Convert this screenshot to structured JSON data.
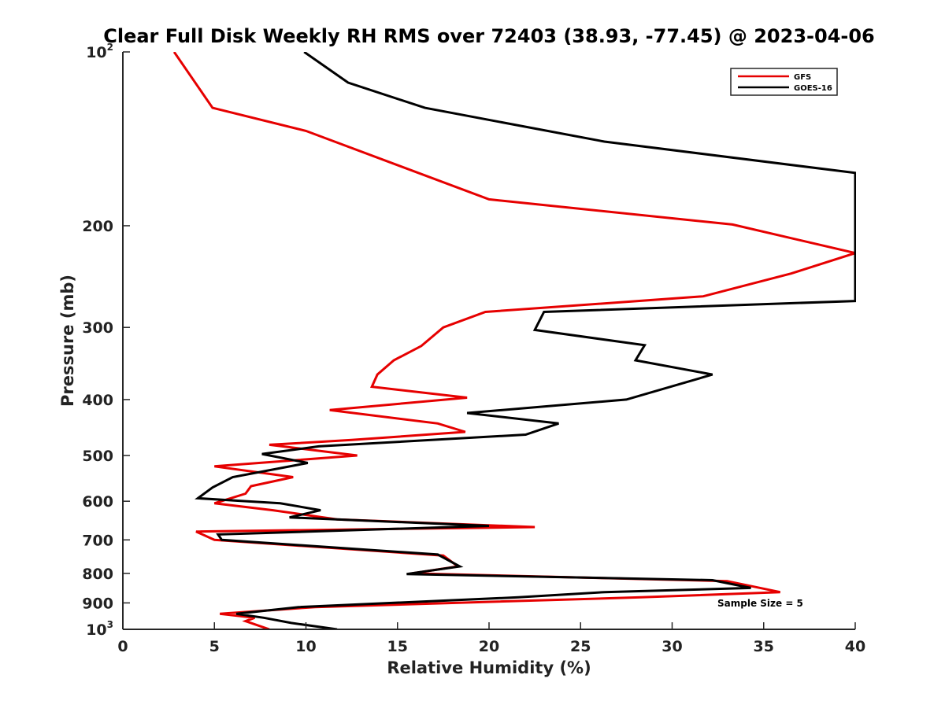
{
  "chart_data": {
    "type": "line",
    "title": "Clear Full Disk Weekly RH RMS over 72403 (38.93, -77.45) @ 2023-04-06",
    "xlabel": "Relative Humidity (%)",
    "ylabel": "Pressure (mb)",
    "xlim": [
      0,
      40
    ],
    "ylim": [
      100,
      1000
    ],
    "y_scale": "log",
    "y_reversed": true,
    "grid": false,
    "legend_placement": "top-right",
    "x_ticks": [
      "0",
      "5",
      "10",
      "15",
      "20",
      "25",
      "30",
      "35",
      "40"
    ],
    "y_ticks": [
      {
        "value": 100,
        "label": "10",
        "sup": "2"
      },
      {
        "value": 200,
        "label": "200"
      },
      {
        "value": 300,
        "label": "300"
      },
      {
        "value": 400,
        "label": "400"
      },
      {
        "value": 500,
        "label": "500"
      },
      {
        "value": 600,
        "label": "600"
      },
      {
        "value": 700,
        "label": "700"
      },
      {
        "value": 800,
        "label": "800"
      },
      {
        "value": 900,
        "label": "900"
      },
      {
        "value": 1000,
        "label": "10",
        "sup": "3"
      }
    ],
    "annotation": "Sample Size = 5",
    "series": [
      {
        "name": "GFS",
        "color": "#e60000",
        "points": [
          [
            2.8,
            100
          ],
          [
            4.9,
            125
          ],
          [
            10.0,
            137
          ],
          [
            20.0,
            180
          ],
          [
            33.3,
            199
          ],
          [
            40.0,
            223
          ],
          [
            36.5,
            242
          ],
          [
            31.7,
            265
          ],
          [
            19.8,
            282
          ],
          [
            17.5,
            300
          ],
          [
            16.3,
            323
          ],
          [
            14.8,
            342
          ],
          [
            13.9,
            362
          ],
          [
            13.6,
            380
          ],
          [
            18.8,
            397
          ],
          [
            11.3,
            417
          ],
          [
            17.2,
            440
          ],
          [
            18.7,
            455
          ],
          [
            12.5,
            470
          ],
          [
            8.0,
            479
          ],
          [
            12.8,
            500
          ],
          [
            5.0,
            522
          ],
          [
            9.3,
            545
          ],
          [
            7.0,
            565
          ],
          [
            6.7,
            582
          ],
          [
            5.0,
            605
          ],
          [
            8.2,
            622
          ],
          [
            11.7,
            645
          ],
          [
            22.5,
            665
          ],
          [
            4.0,
            677
          ],
          [
            5.0,
            700
          ],
          [
            17.5,
            745
          ],
          [
            18.3,
            778
          ],
          [
            15.8,
            800
          ],
          [
            33.0,
            825
          ],
          [
            35.9,
            862
          ],
          [
            28.3,
            880
          ],
          [
            10.5,
            915
          ],
          [
            5.3,
            940
          ],
          [
            7.2,
            955
          ],
          [
            6.7,
            968
          ],
          [
            8.0,
            1000
          ]
        ]
      },
      {
        "name": "GOES-16",
        "color": "#000000",
        "points": [
          [
            9.9,
            100
          ],
          [
            12.3,
            113
          ],
          [
            16.5,
            125
          ],
          [
            26.3,
            143
          ],
          [
            40.0,
            162
          ],
          [
            40.0,
            270
          ],
          [
            23.0,
            282
          ],
          [
            22.5,
            303
          ],
          [
            28.5,
            322
          ],
          [
            28.0,
            342
          ],
          [
            32.2,
            362
          ],
          [
            27.5,
            400
          ],
          [
            18.8,
            422
          ],
          [
            23.8,
            440
          ],
          [
            22.0,
            460
          ],
          [
            10.7,
            482
          ],
          [
            7.6,
            497
          ],
          [
            10.1,
            515
          ],
          [
            6.0,
            545
          ],
          [
            4.9,
            568
          ],
          [
            4.1,
            593
          ],
          [
            8.6,
            605
          ],
          [
            10.8,
            622
          ],
          [
            9.1,
            640
          ],
          [
            20.0,
            662
          ],
          [
            5.2,
            685
          ],
          [
            5.4,
            700
          ],
          [
            17.2,
            742
          ],
          [
            18.4,
            778
          ],
          [
            15.5,
            802
          ],
          [
            32.2,
            822
          ],
          [
            34.3,
            848
          ],
          [
            26.3,
            862
          ],
          [
            21.6,
            880
          ],
          [
            9.6,
            915
          ],
          [
            6.2,
            940
          ],
          [
            7.7,
            955
          ],
          [
            9.2,
            975
          ],
          [
            11.7,
            1000
          ]
        ]
      }
    ]
  }
}
